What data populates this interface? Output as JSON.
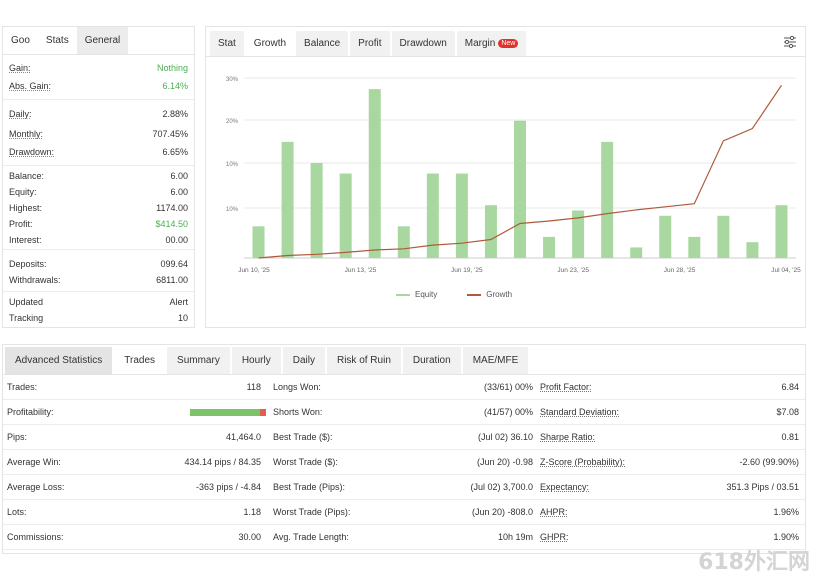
{
  "left": {
    "tabs": [
      "Goo",
      "Stats",
      "General"
    ],
    "rows": [
      {
        "label": "Gain:",
        "value": "Nothing",
        "green": true
      },
      {
        "label": "Abs. Gain:",
        "value": "6.14%",
        "green": true
      },
      {
        "label": "Daily:",
        "value": "2.88%"
      },
      {
        "label": "Monthly:",
        "value": "707.45%"
      },
      {
        "label": "Drawdown:",
        "value": "6.65%"
      },
      {
        "label": "Balance:",
        "value": "6.00"
      },
      {
        "label": "Equity:",
        "value": "6.00"
      },
      {
        "label": "Highest:",
        "value": "1174.00"
      },
      {
        "label": "Profit:",
        "value": "$414.50",
        "green": true
      },
      {
        "label": "Interest:",
        "value": "00.00"
      },
      {
        "label": "Deposits:",
        "value": "099.64"
      },
      {
        "label": "Withdrawals:",
        "value": "6811.00"
      },
      {
        "label": "Updated",
        "value": "Alert"
      },
      {
        "label": "Tracking",
        "value": "10"
      }
    ]
  },
  "chart_panel": {
    "tabs": [
      "Stat",
      "Growth",
      "Balance",
      "Profit",
      "Drawdown",
      "Margin"
    ],
    "new_badge": "New",
    "legend": [
      "Equity",
      "Growth"
    ],
    "colors": {
      "bars": "#a8d8a0",
      "line": "#b05a3c",
      "grid": "#e8e8e8"
    }
  },
  "chart_data": {
    "type": "bar",
    "x_ticks": [
      "Jun 10, '25",
      "Jun 13, '25",
      "Jun 19, '25",
      "Jun 23, '25",
      "Jun 28, '25",
      "Jul 04, '25"
    ],
    "y_ticks": [
      "30%",
      "20%",
      "10%",
      "10%"
    ],
    "bars": [
      6,
      22,
      18,
      16,
      32,
      6,
      16,
      16,
      10,
      26,
      4,
      9,
      22,
      2,
      8,
      4,
      8,
      3,
      10
    ],
    "growth": [
      0,
      0.4,
      0.6,
      0.9,
      1.3,
      1.5,
      2.1,
      2.4,
      3.0,
      5.6,
      6.0,
      6.5,
      7.2,
      7.8,
      8.3,
      8.8,
      19.0,
      21.0,
      28.0
    ],
    "legend": [
      "Equity",
      "Growth"
    ]
  },
  "bottom": {
    "tabs": [
      "Advanced Statistics",
      "Trades",
      "Summary",
      "Hourly",
      "Daily",
      "Risk of Ruin",
      "Duration",
      "MAE/MFE"
    ],
    "rows": [
      {
        "c1": "Trades:",
        "v1": "118",
        "c2": "Longs Won:",
        "v2": "(33/61) 00%",
        "c3": "Profit Factor:",
        "v3": "6.84"
      },
      {
        "c1": "Profitability:",
        "v1": "",
        "c2": "Shorts Won:",
        "v2": "(41/57) 00%",
        "c3": "Standard Deviation:",
        "v3": "$7.08"
      },
      {
        "c1": "Pips:",
        "v1": "41,464.0",
        "c2": "Best Trade ($):",
        "v2": "(Jul 02) 36.10",
        "c3": "Sharpe Ratio:",
        "v3": "0.81"
      },
      {
        "c1": "Average Win:",
        "v1": "434.14 pips / 84.35",
        "c2": "Worst Trade ($):",
        "v2": "(Jun 20) -0.98",
        "c3": "Z-Score (Probability):",
        "v3": "-2.60 (99.90%)"
      },
      {
        "c1": "Average Loss:",
        "v1": "-363 pips / -4.84",
        "c2": "Best Trade (Pips):",
        "v2": "(Jul 02) 3,700.0",
        "c3": "Expectancy:",
        "v3": "351.3 Pips / 03.51"
      },
      {
        "c1": "Lots:",
        "v1": "1.18",
        "c2": "Worst Trade (Pips):",
        "v2": "(Jun 20) -808.0",
        "c3": "AHPR:",
        "v3": "1.96%"
      },
      {
        "c1": "Commissions:",
        "v1": "30.00",
        "c2": "Avg. Trade Length:",
        "v2": "10h 19m",
        "c3": "GHPR:",
        "v3": "1.90%"
      }
    ]
  },
  "watermark": "618外汇网"
}
